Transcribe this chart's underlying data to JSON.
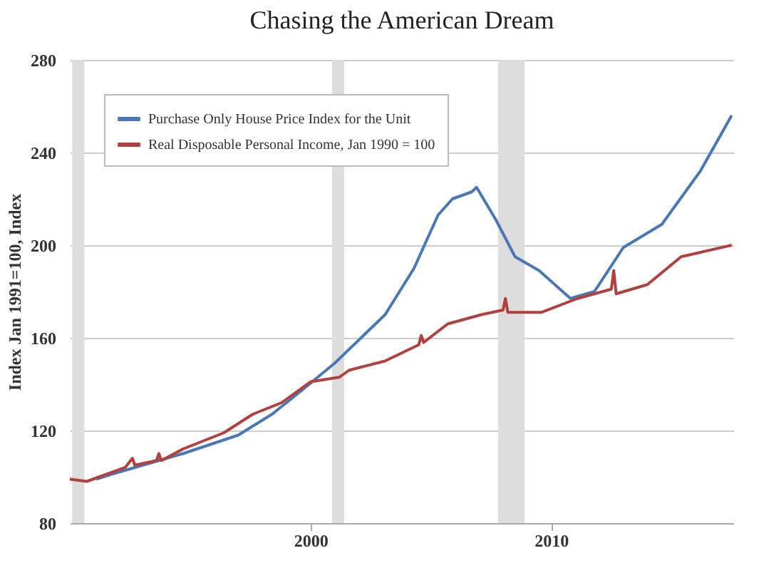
{
  "chart_data": {
    "type": "line",
    "title": "Chasing the American Dream",
    "ylabel": "Index Jan 1991=100, Index",
    "xlim": [
      1990,
      2017.6
    ],
    "xticks": [
      2000,
      2010
    ],
    "ylim": [
      80,
      280
    ],
    "yticks": [
      80,
      120,
      160,
      200,
      240,
      280
    ],
    "grid": "y",
    "legend": "top left",
    "line_style": "solid",
    "bands": [
      {
        "axis": "x",
        "from": 1990.1,
        "to": 1990.6,
        "color": "#dddddd"
      },
      {
        "axis": "x",
        "from": 2000.9,
        "to": 2001.4,
        "color": "#dddddd"
      },
      {
        "axis": "x",
        "from": 2007.8,
        "to": 2008.9,
        "color": "#dddddd"
      }
    ],
    "series": [
      {
        "name": "Purchase Only House Price Index for the Unit",
        "color": "#4a78b5",
        "x": [
          1991.1,
          1991.7,
          1994.7,
          1997.0,
          1998.4,
          1999.6,
          2001.0,
          2003.1,
          2004.3,
          2005.3,
          2005.9,
          2006.7,
          2006.9,
          2007.7,
          2008.5,
          2009.5,
          2010.8,
          2011.8,
          2013.0,
          2014.6,
          2016.2,
          2017.5
        ],
        "values": [
          99,
          101,
          110,
          118,
          127,
          137,
          149,
          170,
          190,
          213,
          220,
          223,
          225,
          211,
          195,
          189,
          177,
          180,
          199,
          209,
          232,
          256
        ]
      },
      {
        "name": "Real Disposable Personal Income, Jan 1990 = 100",
        "color": "#b0413e",
        "x": [
          1990.0,
          1990.7,
          1991.5,
          1992.3,
          1992.6,
          1992.7,
          1993.6,
          1993.7,
          1993.8,
          1994.7,
          1996.4,
          1997.6,
          1998.8,
          2000.0,
          2001.2,
          2001.6,
          2003.1,
          2004.5,
          2004.6,
          2004.7,
          2005.7,
          2007.1,
          2008.0,
          2008.1,
          2008.2,
          2009.6,
          2011.1,
          2012.5,
          2012.6,
          2012.7,
          2014.0,
          2015.4,
          2017.5
        ],
        "values": [
          99,
          98,
          101,
          104,
          108,
          105,
          107,
          110,
          107,
          112,
          119,
          127,
          132,
          141,
          143,
          146,
          150,
          157,
          161,
          158,
          166,
          170,
          172,
          177,
          171,
          171,
          177,
          181,
          189,
          179,
          183,
          195,
          200
        ]
      }
    ]
  }
}
